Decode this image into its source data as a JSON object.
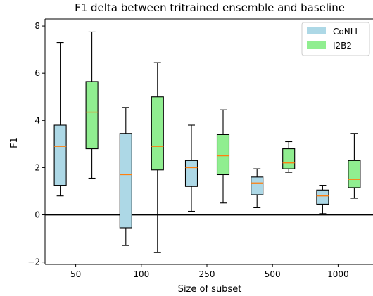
{
  "chart_data": {
    "type": "box",
    "title": "F1 delta between tritrained ensemble and baseline",
    "xlabel": "Size of subset",
    "ylabel": "F1",
    "ylim": [
      -2.1,
      8.3
    ],
    "yticks": [
      -2,
      0,
      2,
      4,
      6,
      8
    ],
    "ytick_labels": [
      "−2",
      "0",
      "2",
      "4",
      "6",
      "8"
    ],
    "categories": [
      "50",
      "100",
      "250",
      "500",
      "1000"
    ],
    "reference_line": 0,
    "grid": false,
    "legend_position": "top-right",
    "series": [
      {
        "name": "CoNLL",
        "color": "#add8e6",
        "boxes": [
          {
            "whisker_low": 0.8,
            "q1": 1.25,
            "median": 2.9,
            "q3": 3.8,
            "whisker_high": 7.3
          },
          {
            "whisker_low": -1.3,
            "q1": -0.55,
            "median": 1.7,
            "q3": 3.45,
            "whisker_high": 4.55
          },
          {
            "whisker_low": 0.15,
            "q1": 1.2,
            "median": 2.0,
            "q3": 2.3,
            "whisker_high": 3.8
          },
          {
            "whisker_low": 0.3,
            "q1": 0.85,
            "median": 1.35,
            "q3": 1.6,
            "whisker_high": 1.95
          },
          {
            "whisker_low": 0.05,
            "q1": 0.45,
            "median": 0.8,
            "q3": 1.05,
            "whisker_high": 1.25
          }
        ]
      },
      {
        "name": "I2B2",
        "color": "#90ee90",
        "boxes": [
          {
            "whisker_low": 1.55,
            "q1": 2.8,
            "median": 4.35,
            "q3": 5.65,
            "whisker_high": 7.75
          },
          {
            "whisker_low": -1.6,
            "q1": 1.9,
            "median": 2.9,
            "q3": 5.0,
            "whisker_high": 6.45
          },
          {
            "whisker_low": 0.5,
            "q1": 1.7,
            "median": 2.5,
            "q3": 3.4,
            "whisker_high": 4.45
          },
          {
            "whisker_low": 1.8,
            "q1": 1.95,
            "median": 2.2,
            "q3": 2.8,
            "whisker_high": 3.1
          },
          {
            "whisker_low": 0.7,
            "q1": 1.15,
            "median": 1.5,
            "q3": 2.3,
            "whisker_high": 3.45
          }
        ]
      }
    ],
    "median_color": "#ff7f0e"
  }
}
